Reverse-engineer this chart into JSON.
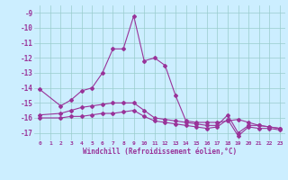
{
  "xlabel": "Windchill (Refroidissement éolien,°C)",
  "bg_color": "#cceeff",
  "line_color": "#993399",
  "xlim": [
    -0.5,
    23.5
  ],
  "ylim": [
    -17.5,
    -8.5
  ],
  "yticks": [
    -9,
    -10,
    -11,
    -12,
    -13,
    -14,
    -15,
    -16,
    -17
  ],
  "xticks": [
    0,
    1,
    2,
    3,
    4,
    5,
    6,
    7,
    8,
    9,
    10,
    11,
    12,
    13,
    14,
    15,
    16,
    17,
    18,
    19,
    20,
    21,
    22,
    23
  ],
  "series1_x": [
    0,
    2,
    3,
    4,
    5,
    6,
    7,
    8,
    9,
    10,
    11,
    12,
    13,
    14,
    15,
    16,
    17,
    18,
    19,
    20,
    21,
    22,
    23
  ],
  "series1_y": [
    -14.1,
    -15.2,
    -14.8,
    -14.2,
    -14.0,
    -13.0,
    -11.4,
    -11.4,
    -9.2,
    -12.2,
    -12.0,
    -12.5,
    -14.5,
    -16.2,
    -16.3,
    -16.3,
    -16.3,
    -16.2,
    -16.1,
    -16.3,
    -16.5,
    -16.6,
    -16.7
  ],
  "series2_x": [
    0,
    2,
    3,
    4,
    5,
    6,
    7,
    8,
    9,
    10,
    11,
    12,
    13,
    14,
    15,
    16,
    17,
    18,
    19,
    20,
    21,
    22,
    23
  ],
  "series2_y": [
    -15.8,
    -15.7,
    -15.5,
    -15.3,
    -15.2,
    -15.1,
    -15.0,
    -15.0,
    -15.0,
    -15.5,
    -16.0,
    -16.1,
    -16.2,
    -16.3,
    -16.4,
    -16.5,
    -16.5,
    -15.8,
    -17.0,
    -16.5,
    -16.5,
    -16.6,
    -16.7
  ],
  "series3_x": [
    0,
    2,
    3,
    4,
    5,
    6,
    7,
    8,
    9,
    10,
    11,
    12,
    13,
    14,
    15,
    16,
    17,
    18,
    19,
    20,
    21,
    22,
    23
  ],
  "series3_y": [
    -16.0,
    -16.0,
    -15.9,
    -15.9,
    -15.8,
    -15.7,
    -15.7,
    -15.6,
    -15.5,
    -15.9,
    -16.2,
    -16.3,
    -16.4,
    -16.5,
    -16.6,
    -16.7,
    -16.6,
    -16.1,
    -17.2,
    -16.6,
    -16.7,
    -16.7,
    -16.8
  ],
  "grid_color": "#99cccc",
  "marker": "D",
  "markersize": 2.0,
  "linewidth": 0.8
}
